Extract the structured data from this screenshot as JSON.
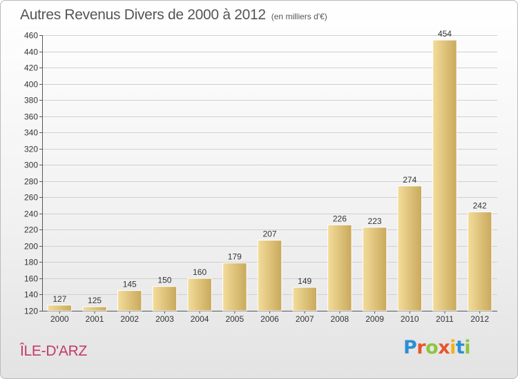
{
  "title": "Autres Revenus Divers de 2000 à 2012",
  "subtitle": "(en milliers d'€)",
  "commune": "ÎLE-D'ARZ",
  "logo": {
    "letters": [
      "P",
      "r",
      "o",
      "x",
      "i",
      "t",
      "i"
    ],
    "colors": [
      "#2b8fd6",
      "#e8552d",
      "#8cc63f",
      "#e8552d",
      "#f2b21b",
      "#2b8fd6",
      "#8cc63f"
    ]
  },
  "colors": {
    "bar_light": "#f3dc9a",
    "bar_dark": "#c9a95c",
    "grid": "#cfcfcf",
    "title": "#555555",
    "commune": "#c0396b"
  },
  "chart_data": {
    "type": "bar",
    "title": "Autres Revenus Divers de 2000 à 2012",
    "subtitle": "(en milliers d'€)",
    "xlabel": "",
    "ylabel": "",
    "categories": [
      "2000",
      "2001",
      "2002",
      "2003",
      "2004",
      "2005",
      "2006",
      "2007",
      "2008",
      "2009",
      "2010",
      "2011",
      "2012"
    ],
    "values": [
      127,
      125,
      145,
      150,
      160,
      179,
      207,
      149,
      226,
      223,
      274,
      454,
      242
    ],
    "ylim": [
      120,
      460
    ],
    "yticks": [
      120,
      140,
      160,
      180,
      200,
      220,
      240,
      260,
      280,
      300,
      320,
      340,
      360,
      380,
      400,
      420,
      440,
      460
    ],
    "grid": true,
    "legend": "none"
  }
}
